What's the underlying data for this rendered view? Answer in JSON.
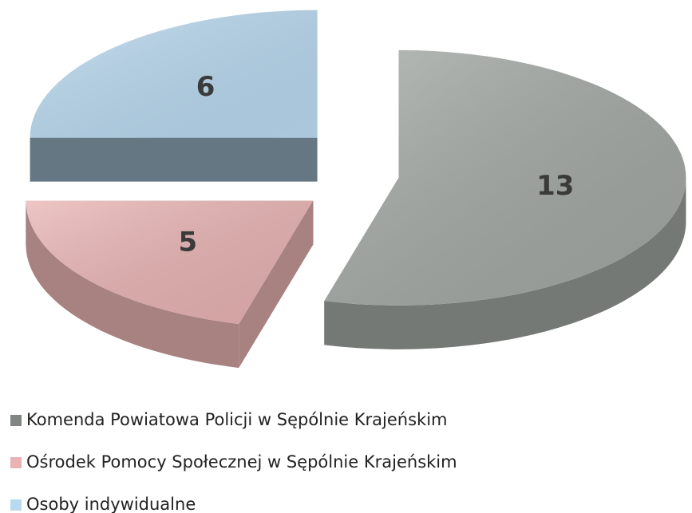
{
  "chart_data": {
    "type": "pie",
    "categories": [
      "Komenda Powiatowa Policji w Sępólnie Krajeńskim",
      "Ośrodek Pomocy Społecznej w Sępólnie Krajeńskim",
      "Osoby indywidualne"
    ],
    "values": [
      13,
      5,
      6
    ],
    "colors": [
      "#a3a8a4",
      "#e9b3b3",
      "#b9d9f0"
    ],
    "legend": "bottom"
  }
}
